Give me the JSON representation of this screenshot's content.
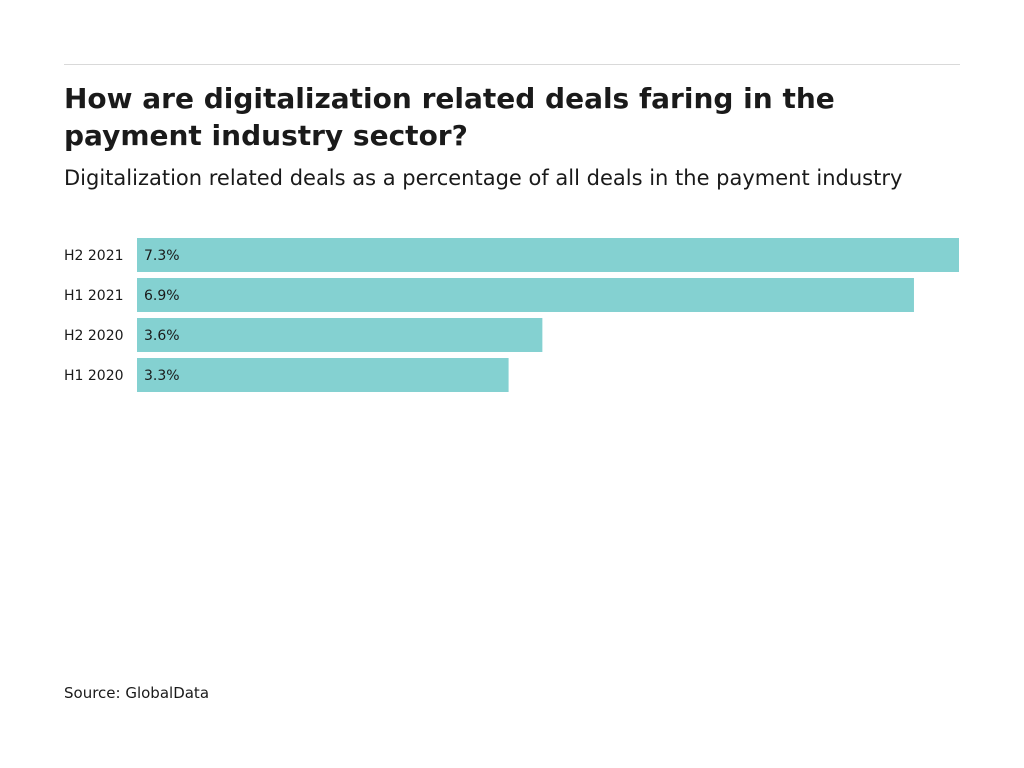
{
  "title": "How are digitalization related deals faring in the payment industry sector?",
  "subtitle": "Digitalization related deals as a percentage of all deals in the payment industry",
  "source": "Source: GlobalData",
  "colors": {
    "bar": "#84d1d1",
    "text": "#1a1a1a",
    "rule": "#d9d9d9"
  },
  "chart_data": {
    "type": "bar",
    "orientation": "horizontal",
    "categories": [
      "H2 2021",
      "H1 2021",
      "H2 2020",
      "H1 2020"
    ],
    "values": [
      7.3,
      6.9,
      3.6,
      3.3
    ],
    "value_labels": [
      "7.3%",
      "6.9%",
      "3.6%",
      "3.3%"
    ],
    "title": "How are digitalization related deals faring in the payment industry sector?",
    "subtitle": "Digitalization related deals as a percentage of all deals in the payment industry",
    "xlim": [
      0,
      7.3
    ],
    "grid": false,
    "legend": "none"
  }
}
